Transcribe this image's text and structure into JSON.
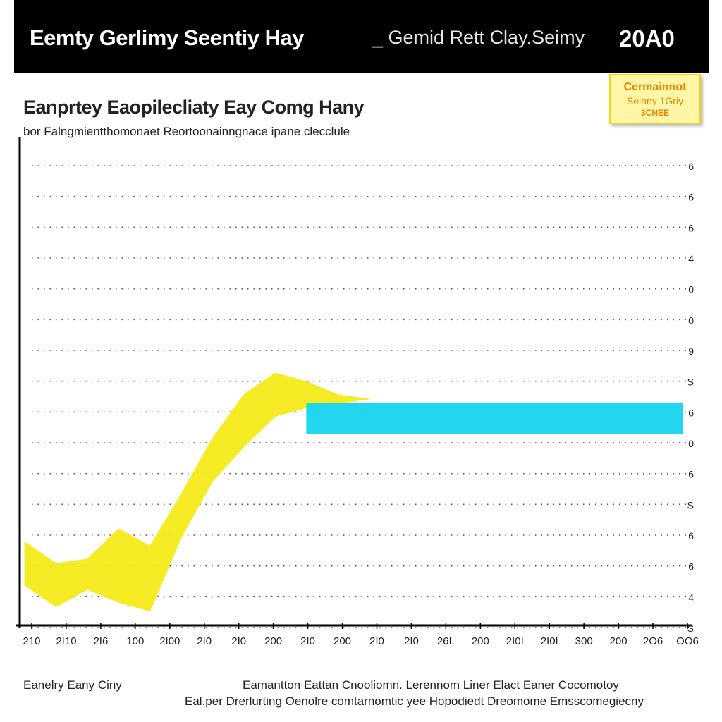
{
  "header": {
    "title": "Eemty Gerlimy Seentiy Hay",
    "subtitle": "_ Gemid Rett Clay.Seimy",
    "year": "20A0"
  },
  "legend": {
    "line1": "Cermainnot",
    "line2": "Seinny 1Griy",
    "line3": "3CNEE"
  },
  "chart": {
    "title": "Eanprtey Eaopilecliaty Eay Comg Hany",
    "subtitle": "bor Falngmientthomonaet Reortoonainngnace ipane clecclule"
  },
  "footer": {
    "left": "Eanelry Eany Ciny",
    "line1": "Eamantton Eattan Cnooliomn. Lerennom Liner Elact Eaner Cocomotoy",
    "line2": "Eal.per Drerlurting Oenolre comtarnomtic yee Hopodiedt Dreomome Emsscomegiecny"
  },
  "colors": {
    "series_a": "#f5eb1a",
    "series_b": "#17d4f0",
    "grid": "#555555",
    "header_bg": "#000000"
  },
  "chart_data": {
    "type": "area",
    "x_tick_labels": [
      "210",
      "2I10",
      "2I6",
      "100",
      "2I00",
      "2I0",
      "2I0",
      "200",
      "2I0",
      "200",
      "2I0",
      "2I0",
      "26I.",
      "200",
      "2I0I",
      "2I0I",
      "300",
      "200",
      "2O6",
      "OO6"
    ],
    "y_tick_labels": [
      "6",
      "6",
      "6",
      "4",
      "0",
      "0",
      "9",
      "S",
      "6",
      "0",
      "6",
      "S",
      "6",
      "6",
      "4",
      "S"
    ],
    "grid": "dotted",
    "legend_position": "top-right",
    "series": [
      {
        "color": "#f5eb1a",
        "x": [
          0,
          1,
          2,
          3,
          4,
          5,
          6,
          7,
          8,
          9,
          10,
          11
        ],
        "upper": [
          1.9,
          1.4,
          1.5,
          2.2,
          1.8,
          3.0,
          4.3,
          5.3,
          5.8,
          5.6,
          5.3,
          5.2
        ],
        "lower": [
          0.9,
          0.4,
          0.8,
          0.5,
          0.3,
          2.0,
          3.3,
          4.1,
          4.8,
          5.0,
          5.1,
          5.2
        ]
      },
      {
        "color": "#17d4f0",
        "x": [
          9,
          21
        ],
        "upper": [
          5.1,
          5.1
        ],
        "lower": [
          4.4,
          4.4
        ]
      }
    ]
  }
}
